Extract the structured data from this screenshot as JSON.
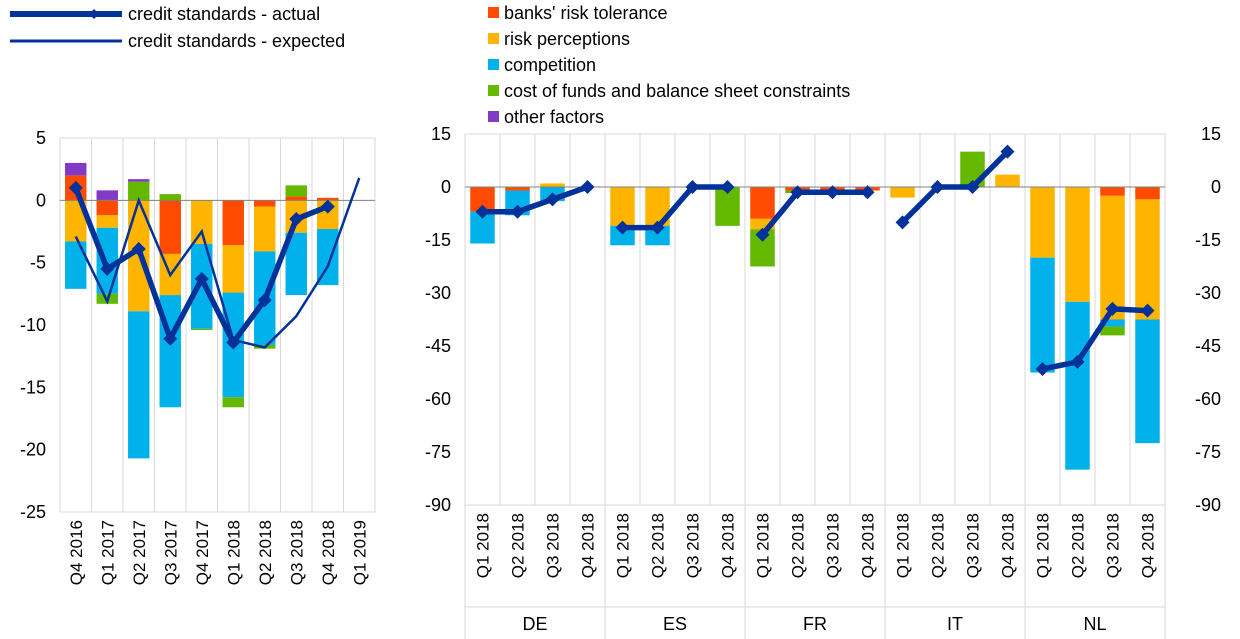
{
  "colors": {
    "banks_risk_tolerance": "#FF4B00",
    "risk_perceptions": "#FFB400",
    "competition": "#00B1EA",
    "cost_of_funds": "#65B800",
    "other_factors": "#8139C6",
    "line": "#003299",
    "grid": "#D9D9D9",
    "axis": "#808080"
  },
  "legend": {
    "line_items": [
      {
        "key": "actual",
        "label": "credit standards - actual"
      },
      {
        "key": "expected",
        "label": "credit standards - expected"
      }
    ],
    "bar_items": [
      {
        "key": "banks_risk_tolerance",
        "label": "banks' risk tolerance"
      },
      {
        "key": "risk_perceptions",
        "label": "risk perceptions"
      },
      {
        "key": "competition",
        "label": "competition"
      },
      {
        "key": "cost_of_funds",
        "label": "cost of funds and balance sheet constraints"
      },
      {
        "key": "other_factors",
        "label": "other factors"
      }
    ]
  },
  "chart_data": [
    {
      "type": "bar",
      "stacked": true,
      "categories": [
        "Q4 2016",
        "Q1 2017",
        "Q2 2017",
        "Q3 2017",
        "Q4 2017",
        "Q1 2018",
        "Q2 2018",
        "Q3 2018",
        "Q4 2018",
        "Q1 2019"
      ],
      "ylim": [
        -25,
        5
      ],
      "yticks": [
        5,
        0,
        -5,
        -10,
        -15,
        -20,
        -25
      ],
      "grid": true,
      "series": [
        {
          "key": "banks_risk_tolerance",
          "name": "banks' risk tolerance",
          "values": [
            2.0,
            -1.2,
            0,
            -4.3,
            0,
            -3.6,
            -0.5,
            0.3,
            0.2,
            null
          ]
        },
        {
          "key": "risk_perceptions",
          "name": "risk perceptions",
          "values": [
            -3.3,
            -1.0,
            -8.9,
            -3.3,
            -3.5,
            -3.8,
            -3.6,
            -2.6,
            -2.3,
            null
          ]
        },
        {
          "key": "competition",
          "name": "competition",
          "values": [
            -3.8,
            -5.3,
            -11.8,
            -9.0,
            -6.8,
            -8.4,
            -7.5,
            -5.0,
            -4.5,
            null
          ]
        },
        {
          "key": "cost_of_funds",
          "name": "cost of funds and balance sheet constraints",
          "values": [
            0,
            -0.8,
            1.5,
            0.5,
            -0.1,
            -0.8,
            -0.3,
            0.9,
            0,
            null
          ]
        },
        {
          "key": "other_factors",
          "name": "other factors",
          "values": [
            1.0,
            0.8,
            0.2,
            0,
            0,
            0,
            0,
            0,
            0,
            null
          ]
        },
        {
          "key": "actual",
          "type": "line",
          "name": "credit standards - actual",
          "values": [
            1.0,
            -5.5,
            -3.9,
            -11.1,
            -6.3,
            -11.4,
            -8.0,
            -1.5,
            -0.5,
            null
          ]
        },
        {
          "key": "expected",
          "type": "line",
          "name": "credit standards - expected",
          "values": [
            -2.9,
            -8.1,
            0.0,
            -6.0,
            -2.5,
            -11.2,
            -11.8,
            -9.3,
            -5.3,
            1.8
          ]
        }
      ]
    },
    {
      "type": "bar",
      "stacked": true,
      "groups": [
        "DE",
        "ES",
        "FR",
        "IT",
        "NL"
      ],
      "categories": [
        "Q1 2018",
        "Q2 2018",
        "Q3 2018",
        "Q4 2018"
      ],
      "ylim": [
        -90,
        15
      ],
      "yticks": [
        15,
        0,
        -15,
        -30,
        -45,
        -60,
        -75,
        -90
      ],
      "y_axis_both_sides": true,
      "grid": true,
      "countries": [
        {
          "name": "DE",
          "banks_risk_tolerance": [
            -7,
            -1,
            0,
            0
          ],
          "risk_perceptions": [
            0,
            0,
            1,
            0
          ],
          "competition": [
            -9,
            -7,
            -4,
            0
          ],
          "cost_of_funds": [
            0,
            0,
            0,
            0
          ],
          "actual": [
            -7,
            -7,
            -3.5,
            0
          ]
        },
        {
          "name": "ES",
          "banks_risk_tolerance": [
            0,
            0,
            0,
            0
          ],
          "risk_perceptions": [
            -11,
            -11,
            0,
            0
          ],
          "competition": [
            -5.5,
            -5.5,
            0,
            0
          ],
          "cost_of_funds": [
            0,
            0,
            0,
            -11
          ],
          "actual": [
            -11.5,
            -11.5,
            0,
            0
          ]
        },
        {
          "name": "FR",
          "banks_risk_tolerance": [
            -9,
            -1,
            -1,
            -1
          ],
          "risk_perceptions": [
            -3,
            0,
            0,
            0
          ],
          "competition": [
            0,
            0,
            0,
            0
          ],
          "cost_of_funds": [
            -10.5,
            -0.7,
            0,
            0
          ],
          "actual": [
            -13.5,
            -1.5,
            -1.5,
            -1.5
          ]
        },
        {
          "name": "IT",
          "banks_risk_tolerance": [
            0,
            0,
            0,
            0
          ],
          "risk_perceptions": [
            -3,
            0,
            0,
            3.5
          ],
          "competition": [
            0,
            0,
            0,
            0
          ],
          "cost_of_funds": [
            0,
            0,
            10,
            0
          ],
          "actual": [
            -10,
            0,
            0,
            10
          ]
        },
        {
          "name": "NL",
          "banks_risk_tolerance": [
            0,
            0,
            -2.5,
            -3.5
          ],
          "risk_perceptions": [
            -20,
            -32.5,
            -35,
            -34
          ],
          "competition": [
            -32.5,
            -47.5,
            -2,
            -35
          ],
          "cost_of_funds": [
            0,
            0,
            -2.5,
            0
          ],
          "actual": [
            -51.5,
            -49.5,
            -34.5,
            -35
          ]
        }
      ]
    }
  ]
}
